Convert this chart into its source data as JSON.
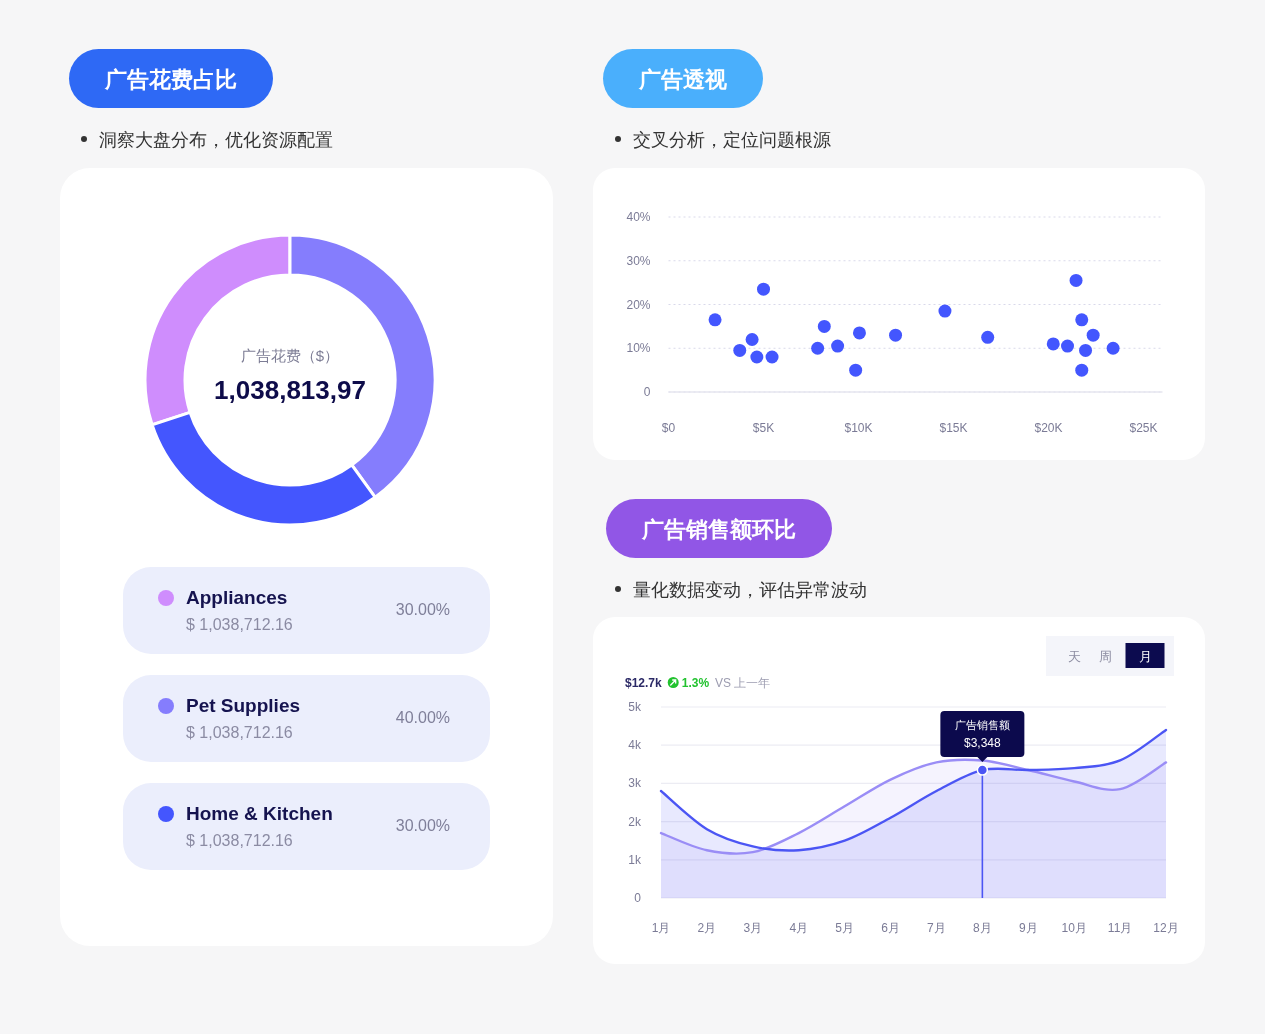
{
  "chart_data": [
    {
      "type": "donut",
      "title": "广告花费占比",
      "subtitle": "洞察大盘分布，优化资源配置",
      "categories": [
        "Appliances",
        "Pet Supplies",
        "Home & Kitchen"
      ],
      "values": [
        30,
        40,
        30
      ],
      "colors": [
        "#cf8dfd",
        "#857dfd",
        "#4456fe"
      ],
      "value_labels": [
        "30.00%",
        "40.00%",
        "30.00%"
      ],
      "annotations": [
        "广告花费（$）",
        "1,038,813,97",
        "$ 1,038,712.16",
        "$ 1,038,712.16",
        "$ 1,038,712.16"
      ],
      "legend": "bottom"
    },
    {
      "type": "scatter",
      "title": "广告透视",
      "subtitle": "交叉分析，定位问题根源",
      "x": [
        2450,
        3750,
        4400,
        4650,
        5000,
        5450,
        7850,
        8200,
        8900,
        9850,
        10050,
        11950,
        14550,
        16800,
        20250,
        21000,
        21450,
        21750,
        21750,
        21950,
        22350,
        23400
      ],
      "values": [
        16.5,
        9.5,
        12,
        8,
        23.5,
        8,
        10,
        15,
        10.5,
        5,
        13.5,
        13,
        18.5,
        12.5,
        11,
        10.5,
        25.5,
        16.5,
        5,
        9.5,
        13,
        10
      ],
      "color": "#4356fe",
      "marker": "circle",
      "xlim": [
        0,
        26000
      ],
      "xticks": [
        {
          "value": 0,
          "label": "$0"
        },
        {
          "value": 5000,
          "label": "$5K"
        },
        {
          "value": 10000,
          "label": "$10K"
        },
        {
          "value": 15000,
          "label": "$15K"
        },
        {
          "value": 20000,
          "label": "$20K"
        },
        {
          "value": 25000,
          "label": "$25K"
        }
      ],
      "ylim": [
        0,
        40
      ],
      "yticks": [
        0,
        {
          "value": 10,
          "label": "10%"
        },
        {
          "value": 20,
          "label": "20%"
        },
        {
          "value": 30,
          "label": "30%"
        },
        {
          "value": 40,
          "label": "40%"
        }
      ],
      "grid": "y"
    },
    {
      "type": "area",
      "title": "广告销售额环比",
      "subtitle": "量化数据变动，评估异常波动",
      "categories": [
        "1月",
        "2月",
        "3月",
        "4月",
        "5月",
        "6月",
        "7月",
        "8月",
        "9月",
        "10月",
        "11月",
        "12月"
      ],
      "series": [
        {
          "color": "#4b55f4",
          "values": [
            2800,
            1800,
            1350,
            1250,
            1500,
            2100,
            2800,
            3348,
            3350,
            3400,
            3600,
            4400
          ],
          "value_labels": [
            null,
            null,
            null,
            null,
            null,
            null,
            null,
            "$3,348",
            null,
            null,
            null,
            null
          ]
        },
        {
          "color": "#9a8df6",
          "values": [
            1700,
            1250,
            1200,
            1700,
            2400,
            3100,
            3550,
            3600,
            3350,
            3050,
            2850,
            3550
          ]
        }
      ],
      "ylim": [
        0,
        5000
      ],
      "yticks": [
        0,
        {
          "value": 1000,
          "label": "1k"
        },
        {
          "value": 2000,
          "label": "2k"
        },
        {
          "value": 3000,
          "label": "3k"
        },
        {
          "value": 4000,
          "label": "4k"
        },
        {
          "value": 5000,
          "label": "5k"
        }
      ],
      "grid": "y",
      "ref_lines": [
        {
          "axis": "x",
          "value": "8月",
          "color": "#4b55f4"
        }
      ],
      "annotations": [
        "$12.7k",
        "1.3%",
        "VS 上一年",
        "天",
        "周",
        "月",
        "广告销售额"
      ]
    }
  ]
}
